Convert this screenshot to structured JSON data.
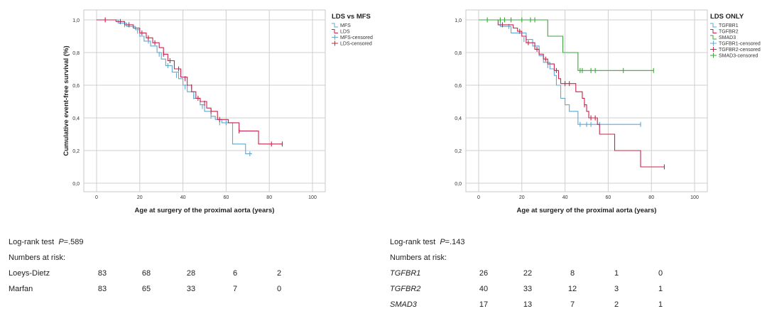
{
  "charts": [
    {
      "legend_title": "LDS vs MFS",
      "xlabel": "Age at surgery of the proximal aorta (years)",
      "ylabel": "Cumulative event-free survival (%)",
      "legend": [
        "MFS",
        "LDS",
        "MFS-censored",
        "LDS-censored"
      ]
    },
    {
      "legend_title": "LDS ONLY",
      "xlabel": "Age at surgery of the proximal aorta (years)",
      "ylabel": "",
      "legend": [
        "TGFBR1",
        "TGFBR2",
        "SMAD3",
        "TGFBR1-censored",
        "TGFBR2-censored",
        "SMAD3-censored"
      ]
    }
  ],
  "risk_left": {
    "logrank_label": "Log-rank test",
    "p_prefix": "P",
    "p_value": "=.589",
    "numbers_at_risk": "Numbers at risk:",
    "rows": [
      {
        "label": "Loeys-Dietz",
        "values": [
          "83",
          "68",
          "28",
          "6",
          "2"
        ]
      },
      {
        "label": "Marfan",
        "values": [
          "83",
          "65",
          "33",
          "7",
          "0"
        ]
      }
    ]
  },
  "risk_right": {
    "logrank_label": "Log-rank test",
    "p_prefix": "P",
    "p_value": "=.143",
    "numbers_at_risk": "Numbers at risk:",
    "rows": [
      {
        "label": "TGFBR1",
        "values": [
          "26",
          "22",
          "8",
          "1",
          "0"
        ]
      },
      {
        "label": "TGFBR2",
        "values": [
          "40",
          "33",
          "12",
          "3",
          "1"
        ]
      },
      {
        "label": "SMAD3",
        "values": [
          "17",
          "13",
          "7",
          "2",
          "1"
        ]
      }
    ]
  },
  "chart_data": [
    {
      "type": "line",
      "title": "LDS vs MFS",
      "xlabel": "Age at surgery of the proximal aorta (years)",
      "ylabel": "Cumulative event-free survival (%)",
      "xlim": [
        0,
        100
      ],
      "ylim": [
        0,
        1
      ],
      "xticks": [
        0,
        20,
        40,
        60,
        80,
        100
      ],
      "yticks": [
        "0,0",
        "0,2",
        "0,4",
        "0,6",
        "0,8",
        "1,0"
      ],
      "grid": true,
      "legend_position": "right",
      "series": [
        {
          "name": "MFS",
          "color": "#5fa8d3",
          "steps": [
            [
              0,
              1.0
            ],
            [
              10,
              0.98
            ],
            [
              14,
              0.96
            ],
            [
              18,
              0.94
            ],
            [
              20,
              0.9
            ],
            [
              22,
              0.87
            ],
            [
              25,
              0.84
            ],
            [
              28,
              0.8
            ],
            [
              30,
              0.76
            ],
            [
              32,
              0.72
            ],
            [
              35,
              0.68
            ],
            [
              38,
              0.64
            ],
            [
              40,
              0.6
            ],
            [
              42,
              0.56
            ],
            [
              45,
              0.52
            ],
            [
              48,
              0.48
            ],
            [
              50,
              0.44
            ],
            [
              53,
              0.41
            ],
            [
              55,
              0.39
            ],
            [
              58,
              0.37
            ],
            [
              63,
              0.24
            ],
            [
              69,
              0.18
            ],
            [
              72,
              0.18
            ]
          ],
          "censored": [
            [
              13,
              0.97
            ],
            [
              19,
              0.93
            ],
            [
              24,
              0.87
            ],
            [
              29,
              0.79
            ],
            [
              33,
              0.72
            ],
            [
              37,
              0.66
            ],
            [
              41,
              0.59
            ],
            [
              45,
              0.53
            ],
            [
              49,
              0.47
            ],
            [
              53,
              0.41
            ],
            [
              57,
              0.37
            ],
            [
              60,
              0.37
            ],
            [
              71,
              0.18
            ]
          ]
        },
        {
          "name": "LDS",
          "color": "#c8234a",
          "steps": [
            [
              0,
              1.0
            ],
            [
              9,
              0.99
            ],
            [
              13,
              0.97
            ],
            [
              17,
              0.95
            ],
            [
              20,
              0.92
            ],
            [
              23,
              0.89
            ],
            [
              26,
              0.86
            ],
            [
              29,
              0.83
            ],
            [
              31,
              0.79
            ],
            [
              33,
              0.75
            ],
            [
              36,
              0.7
            ],
            [
              39,
              0.65
            ],
            [
              42,
              0.6
            ],
            [
              44,
              0.56
            ],
            [
              46,
              0.52
            ],
            [
              48,
              0.5
            ],
            [
              51,
              0.46
            ],
            [
              53,
              0.44
            ],
            [
              56,
              0.39
            ],
            [
              61,
              0.37
            ],
            [
              66,
              0.32
            ],
            [
              75,
              0.24
            ],
            [
              86,
              0.24
            ]
          ],
          "censored": [
            [
              4,
              1.0
            ],
            [
              11,
              0.99
            ],
            [
              15,
              0.97
            ],
            [
              21,
              0.92
            ],
            [
              24,
              0.89
            ],
            [
              27,
              0.86
            ],
            [
              31,
              0.79
            ],
            [
              34,
              0.75
            ],
            [
              38,
              0.7
            ],
            [
              41,
              0.64
            ],
            [
              44,
              0.59
            ],
            [
              47,
              0.52
            ],
            [
              50,
              0.49
            ],
            [
              53,
              0.44
            ],
            [
              57,
              0.39
            ],
            [
              66,
              0.32
            ],
            [
              81,
              0.24
            ],
            [
              86,
              0.24
            ]
          ]
        }
      ]
    },
    {
      "type": "line",
      "title": "LDS ONLY",
      "xlabel": "Age at surgery of the proximal aorta (years)",
      "ylabel": "",
      "xlim": [
        0,
        100
      ],
      "ylim": [
        0,
        1
      ],
      "xticks": [
        0,
        20,
        40,
        60,
        80,
        100
      ],
      "yticks": [
        "0,0",
        "0,2",
        "0,4",
        "0,6",
        "0,8",
        "1,0"
      ],
      "grid": true,
      "legend_position": "right",
      "series": [
        {
          "name": "TGFBR1",
          "color": "#5fa8d3",
          "steps": [
            [
              0,
              1.0
            ],
            [
              10,
              0.96
            ],
            [
              15,
              0.92
            ],
            [
              22,
              0.88
            ],
            [
              25,
              0.84
            ],
            [
              28,
              0.78
            ],
            [
              30,
              0.74
            ],
            [
              33,
              0.7
            ],
            [
              35,
              0.66
            ],
            [
              36,
              0.6
            ],
            [
              38,
              0.52
            ],
            [
              40,
              0.48
            ],
            [
              42,
              0.44
            ],
            [
              46,
              0.36
            ],
            [
              75,
              0.36
            ]
          ],
          "censored": [
            [
              14,
              0.96
            ],
            [
              21,
              0.88
            ],
            [
              26,
              0.84
            ],
            [
              32,
              0.72
            ],
            [
              47,
              0.36
            ],
            [
              50,
              0.36
            ],
            [
              52,
              0.36
            ],
            [
              56,
              0.36
            ],
            [
              75,
              0.36
            ]
          ]
        },
        {
          "name": "TGFBR2",
          "color": "#c8234a",
          "steps": [
            [
              0,
              1.0
            ],
            [
              9,
              0.97
            ],
            [
              16,
              0.95
            ],
            [
              18,
              0.93
            ],
            [
              20,
              0.9
            ],
            [
              22,
              0.86
            ],
            [
              26,
              0.82
            ],
            [
              28,
              0.79
            ],
            [
              30,
              0.76
            ],
            [
              32,
              0.73
            ],
            [
              35,
              0.69
            ],
            [
              37,
              0.64
            ],
            [
              38,
              0.61
            ],
            [
              45,
              0.56
            ],
            [
              48,
              0.52
            ],
            [
              49,
              0.48
            ],
            [
              50,
              0.44
            ],
            [
              51,
              0.4
            ],
            [
              55,
              0.36
            ],
            [
              56,
              0.3
            ],
            [
              63,
              0.2
            ],
            [
              75,
              0.1
            ],
            [
              86,
              0.1
            ]
          ],
          "censored": [
            [
              11,
              0.97
            ],
            [
              19,
              0.93
            ],
            [
              23,
              0.86
            ],
            [
              27,
              0.82
            ],
            [
              31,
              0.76
            ],
            [
              36,
              0.69
            ],
            [
              40,
              0.61
            ],
            [
              42,
              0.61
            ],
            [
              49,
              0.48
            ],
            [
              52,
              0.4
            ],
            [
              54,
              0.4
            ],
            [
              86,
              0.1
            ]
          ]
        },
        {
          "name": "SMAD3",
          "color": "#3aa63a",
          "steps": [
            [
              0,
              1.0
            ],
            [
              32,
              0.9
            ],
            [
              39,
              0.8
            ],
            [
              46,
              0.69
            ],
            [
              81,
              0.69
            ]
          ],
          "censored": [
            [
              4,
              1.0
            ],
            [
              10,
              1.0
            ],
            [
              12,
              1.0
            ],
            [
              15,
              1.0
            ],
            [
              20,
              1.0
            ],
            [
              24,
              1.0
            ],
            [
              26,
              1.0
            ],
            [
              47,
              0.69
            ],
            [
              48,
              0.69
            ],
            [
              52,
              0.69
            ],
            [
              54,
              0.69
            ],
            [
              67,
              0.69
            ],
            [
              81,
              0.69
            ]
          ]
        }
      ]
    }
  ]
}
